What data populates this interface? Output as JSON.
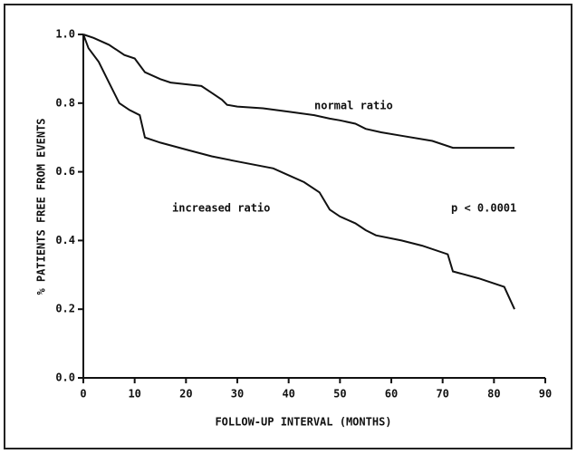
{
  "chart_data": {
    "type": "line",
    "xlabel": "FOLLOW-UP INTERVAL (MONTHS)",
    "ylabel": "% PATIENTS FREE FROM EVENTS",
    "annotations": [
      "normal ratio",
      "increased ratio",
      "p < 0.0001"
    ],
    "xlim": [
      0,
      90
    ],
    "xticks": [
      0,
      10,
      20,
      30,
      40,
      50,
      60,
      70,
      80,
      90
    ],
    "ylim": [
      0,
      1
    ],
    "yticks": [
      {
        "value": 0,
        "label": "0.0"
      },
      0.2,
      0.4,
      0.6,
      0.8,
      {
        "value": 1,
        "label": "1.0"
      }
    ],
    "series": [
      {
        "color": "#111111",
        "x": [
          0,
          2,
          5,
          8,
          10,
          12,
          15,
          17,
          20,
          23,
          25,
          27,
          28,
          30,
          35,
          40,
          45,
          48,
          50,
          53,
          55,
          58,
          62,
          68,
          72,
          84
        ],
        "values": [
          1.0,
          0.99,
          0.97,
          0.94,
          0.93,
          0.89,
          0.87,
          0.86,
          0.855,
          0.85,
          0.83,
          0.81,
          0.795,
          0.79,
          0.785,
          0.775,
          0.765,
          0.755,
          0.75,
          0.74,
          0.725,
          0.715,
          0.705,
          0.69,
          0.67,
          0.67
        ]
      },
      {
        "color": "#111111",
        "x": [
          0,
          1,
          3,
          5,
          7,
          9,
          11,
          12,
          15,
          20,
          25,
          30,
          37,
          40,
          43,
          46,
          48,
          50,
          53,
          55,
          57,
          62,
          66,
          71,
          72,
          77,
          82,
          84
        ],
        "values": [
          1.0,
          0.96,
          0.92,
          0.86,
          0.8,
          0.78,
          0.765,
          0.7,
          0.685,
          0.665,
          0.645,
          0.63,
          0.61,
          0.59,
          0.57,
          0.54,
          0.49,
          0.47,
          0.45,
          0.43,
          0.415,
          0.4,
          0.385,
          0.36,
          0.31,
          0.29,
          0.265,
          0.2
        ]
      }
    ]
  }
}
